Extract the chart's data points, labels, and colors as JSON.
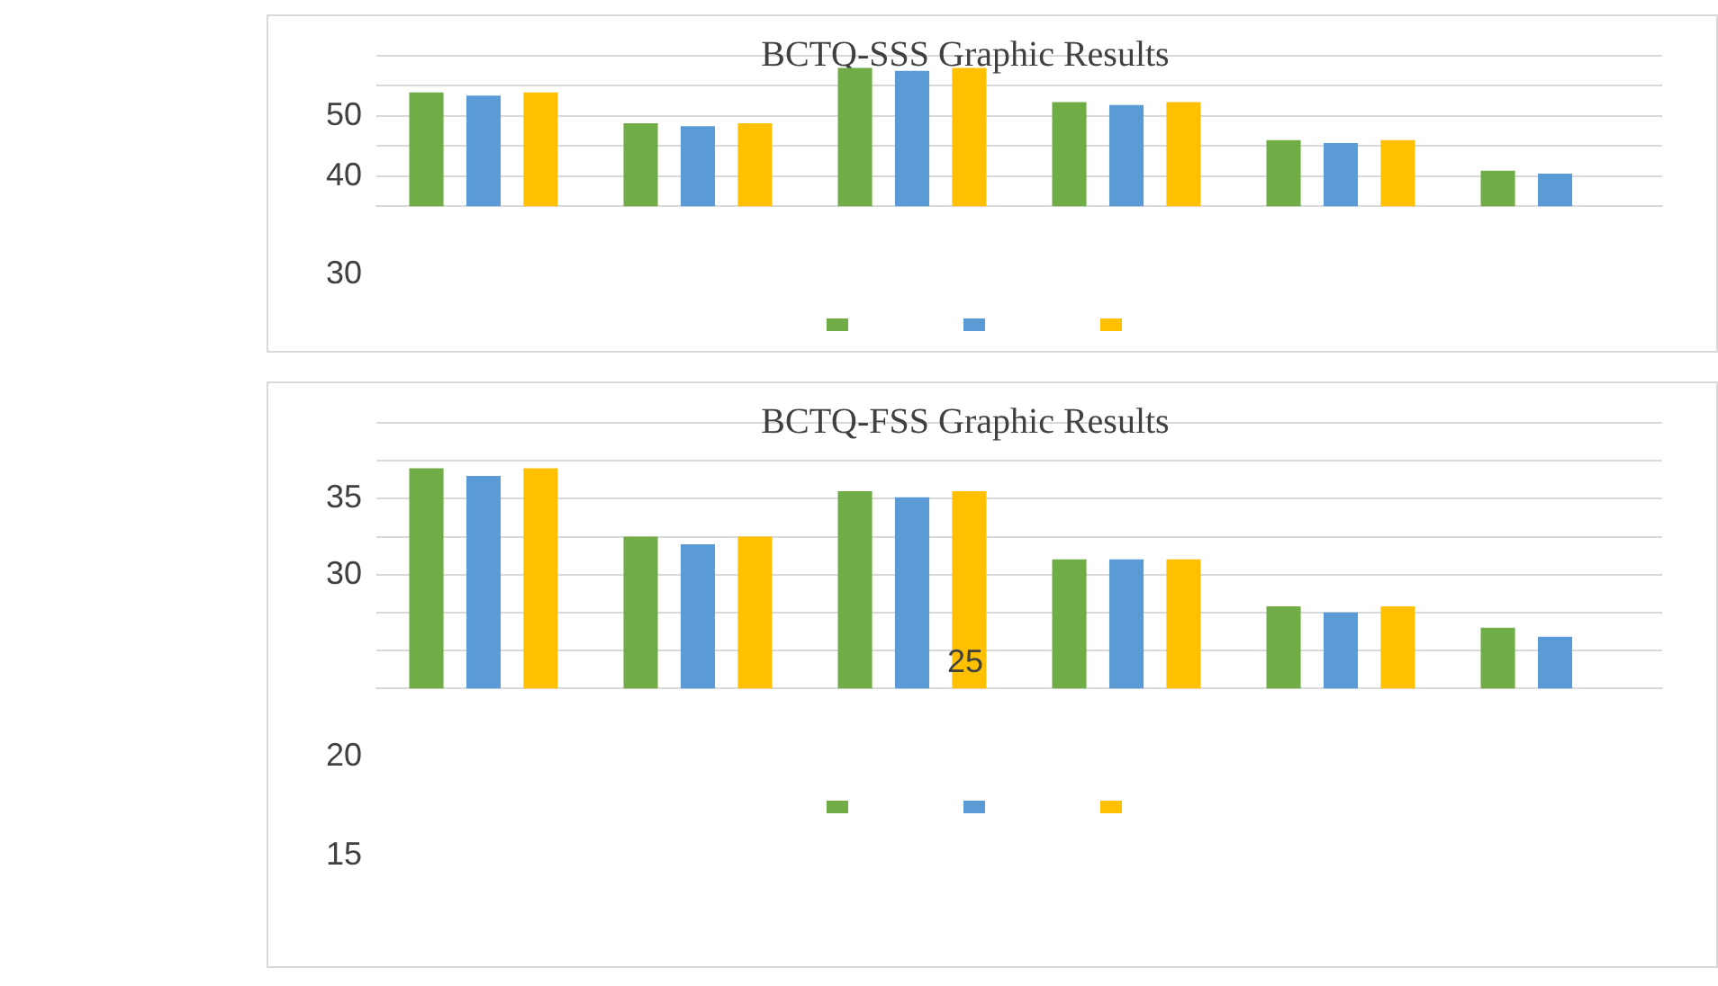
{
  "chart_data": [
    {
      "type": "bar",
      "title": "BCTQ-SSS Graphic Results",
      "categories": [
        null,
        null,
        null,
        null,
        null,
        null
      ],
      "series": [
        {
          "color": "#70ad47",
          "values": [
            53.9,
            48.8,
            58.0,
            52.3,
            46.0,
            40.9
          ]
        },
        {
          "color": "#5b9bd5",
          "values": [
            53.4,
            48.3,
            57.5,
            51.8,
            45.5,
            40.4
          ]
        },
        {
          "color": "#ffc000",
          "values": [
            53.9,
            48.8,
            58.0,
            52.3,
            46.0,
            null
          ]
        }
      ],
      "ylim": [
        35,
        60
      ],
      "yticks": [
        {
          "value": 35,
          "label": null
        },
        40,
        {
          "value": 45,
          "label": null
        },
        50,
        {
          "value": 55,
          "label": null
        },
        {
          "value": 60,
          "label": null
        }
      ],
      "grid": "y",
      "annotations": [
        "30"
      ]
    },
    {
      "type": "bar",
      "title": "BCTQ-FSS Graphic Results",
      "categories": [
        null,
        null,
        null,
        null,
        null,
        null
      ],
      "series": [
        {
          "color": "#70ad47",
          "values": [
            37.0,
            32.5,
            35.5,
            31.0,
            27.9,
            26.5
          ]
        },
        {
          "color": "#5b9bd5",
          "values": [
            36.5,
            32.0,
            35.1,
            31.0,
            27.5,
            25.9
          ]
        },
        {
          "color": "#ffc000",
          "values": [
            37.0,
            32.5,
            35.5,
            31.0,
            27.9,
            null
          ]
        }
      ],
      "ylim": [
        22.5,
        40
      ],
      "yticks": [
        {
          "value": 22.5,
          "label": null
        },
        {
          "value": 25,
          "label": null
        },
        {
          "value": 27.5,
          "label": null
        },
        30,
        {
          "value": 32.5,
          "label": null
        },
        35,
        {
          "value": 37.5,
          "label": null
        },
        {
          "value": 40,
          "label": null
        }
      ],
      "grid": "y",
      "annotations": [
        "25",
        "20",
        "15"
      ]
    }
  ]
}
